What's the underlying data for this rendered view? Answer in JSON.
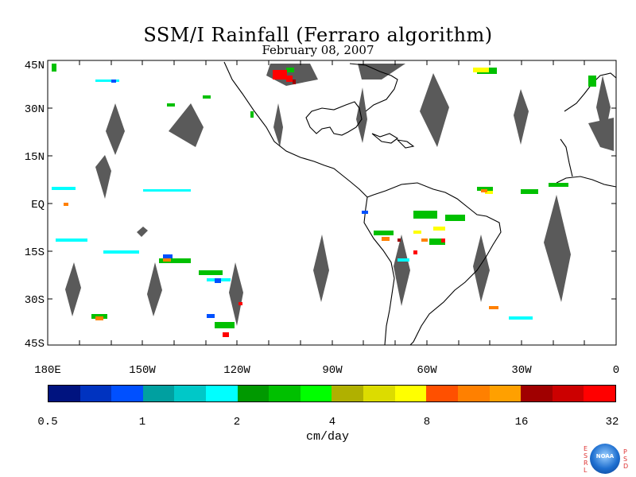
{
  "title": "SSM/I Rainfall (Ferraro algorithm)",
  "subtitle": "February 08, 2007",
  "lat_labels": [
    "45N",
    "30N",
    "15N",
    "EQ",
    "15S",
    "30S",
    "45S"
  ],
  "lon_labels": [
    "180E",
    "150W",
    "120W",
    "90W",
    "60W",
    "30W",
    "0"
  ],
  "colorbar": {
    "colors": [
      "#00137f",
      "#0033c0",
      "#0050ff",
      "#00a0a0",
      "#00c8c8",
      "#00ffff",
      "#009900",
      "#00c000",
      "#00ff00",
      "#b0b000",
      "#dcdc00",
      "#ffff00",
      "#ff5000",
      "#ff8000",
      "#ffa000",
      "#a00000",
      "#cc0000",
      "#ff0000"
    ],
    "ticks": [
      "0.5",
      "1",
      "2",
      "4",
      "8",
      "16",
      "32"
    ],
    "unit": "cm/day"
  },
  "logo": {
    "left_letters": "ESRL",
    "right_letters": "PSD",
    "center_text": "NOAA"
  }
}
